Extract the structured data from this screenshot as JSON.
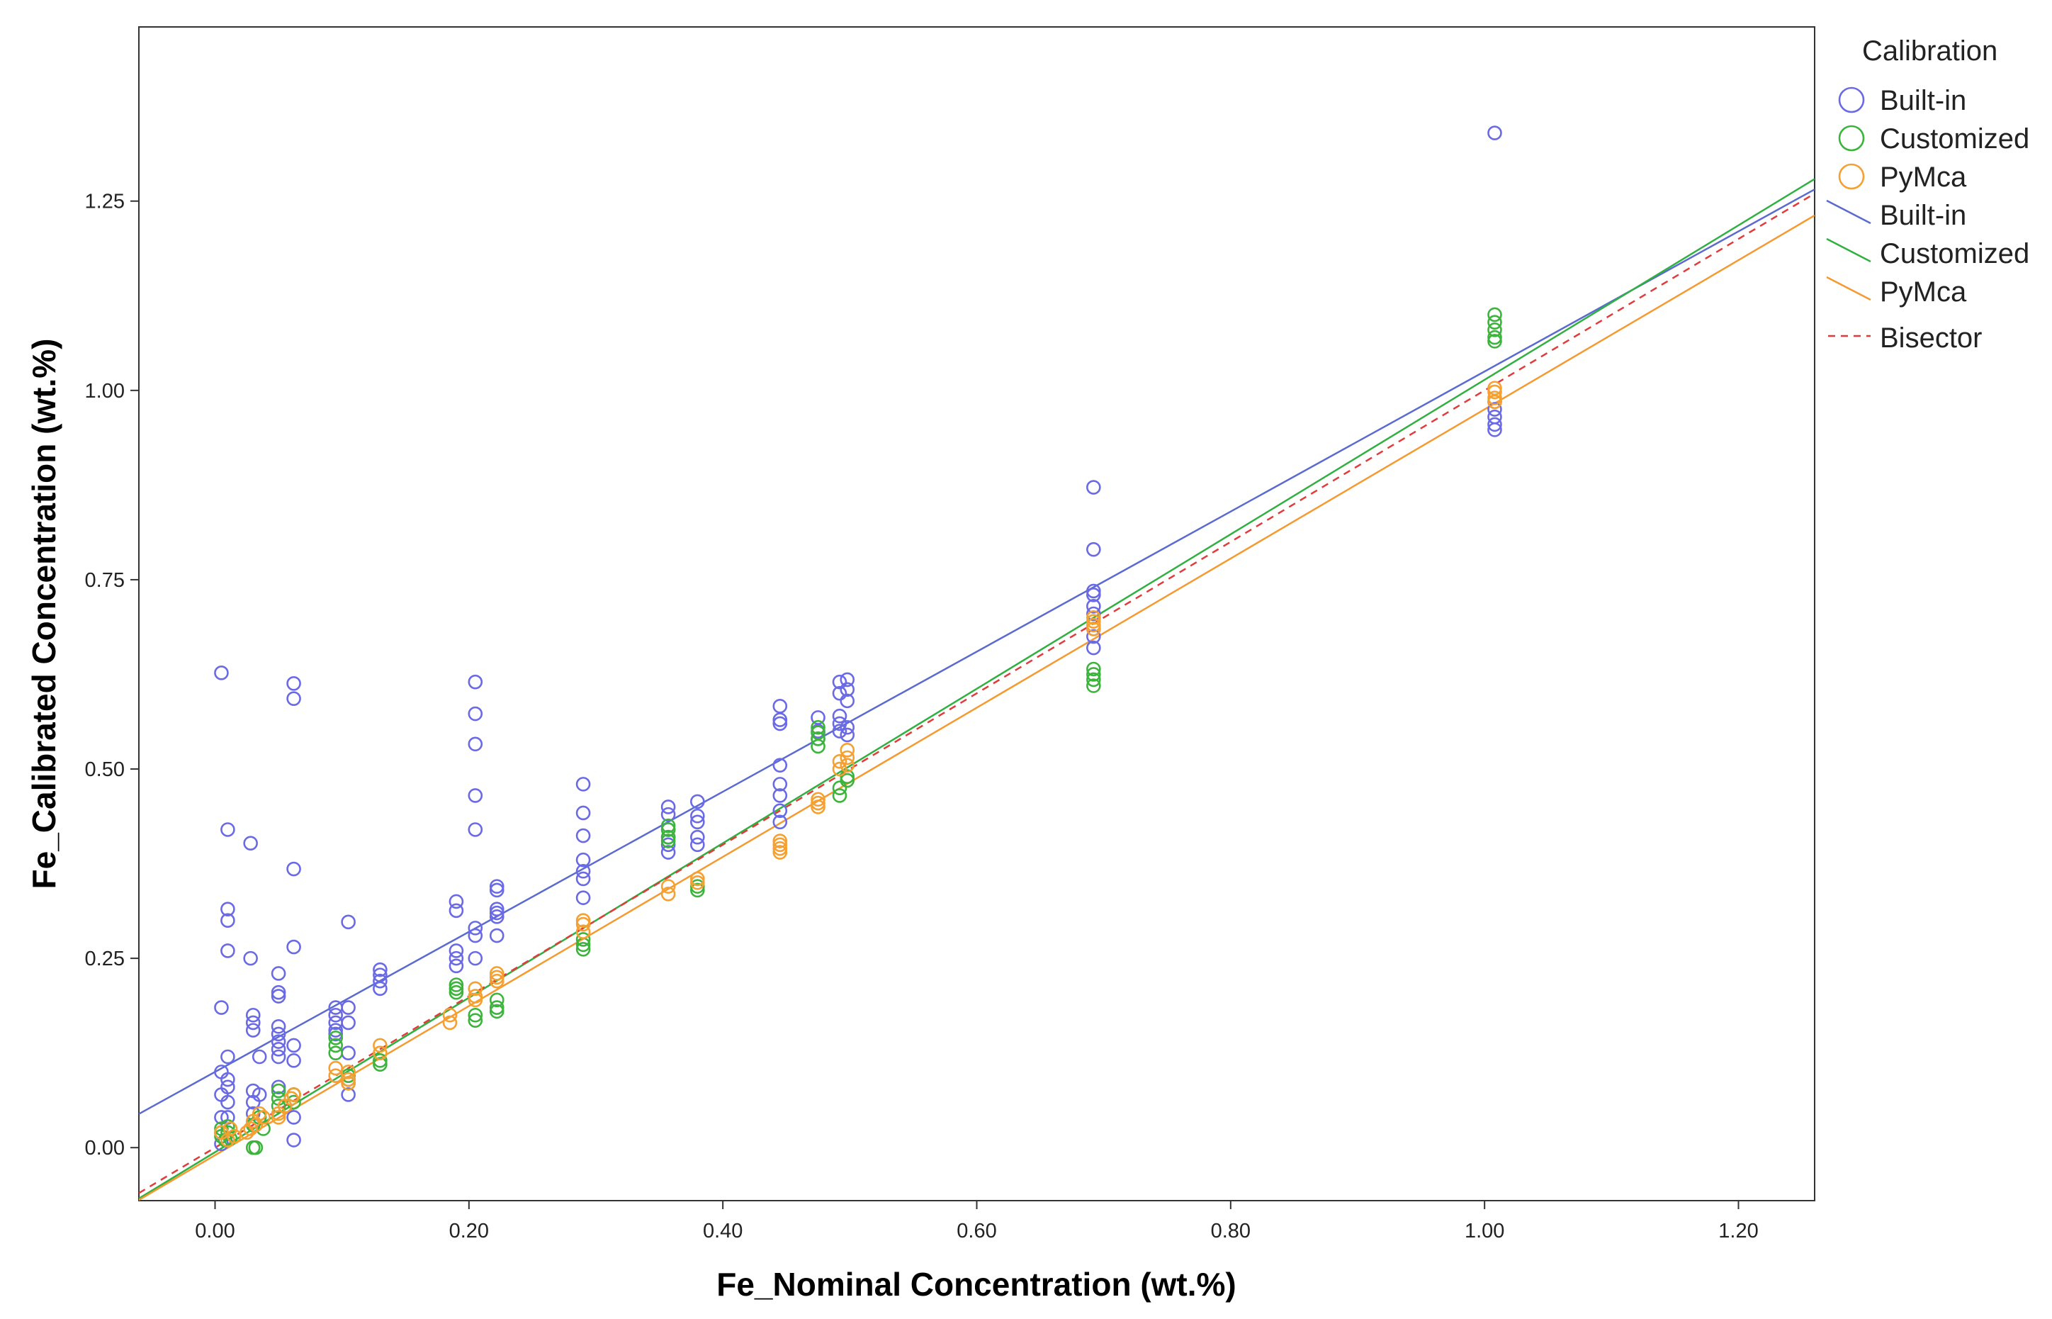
{
  "chart_data": {
    "type": "scatter",
    "xlabel": "Fe_Nominal Concentration (wt.%)",
    "ylabel": "Fe_Calibrated Concentration (wt.%)",
    "xlim": [
      -0.06,
      1.26
    ],
    "ylim": [
      -0.07,
      1.48
    ],
    "x_ticks": [
      "0.00",
      "0.20",
      "0.40",
      "0.60",
      "0.80",
      "1.00",
      "1.20"
    ],
    "x_tick_values": [
      0,
      0.2,
      0.4,
      0.6,
      0.8,
      1.0,
      1.2
    ],
    "y_ticks": [
      "0.00",
      "0.25",
      "0.50",
      "0.75",
      "1.00",
      "1.25"
    ],
    "y_tick_values": [
      0,
      0.25,
      0.5,
      0.75,
      1.0,
      1.25
    ],
    "grid": false,
    "legend": {
      "title": "Calibration",
      "placement": "right",
      "entries": [
        {
          "label": "Built-in",
          "kind": "marker",
          "color": "#6a6ae6"
        },
        {
          "label": "Customized",
          "kind": "marker",
          "color": "#3cb43c"
        },
        {
          "label": "PyMca",
          "kind": "marker",
          "color": "#f5a030"
        },
        {
          "label": "Built-in",
          "kind": "line",
          "color": "#5a6ad0"
        },
        {
          "label": "Customized",
          "kind": "line",
          "color": "#30b040"
        },
        {
          "label": "PyMca",
          "kind": "line",
          "color": "#f59a30"
        },
        {
          "label": "Bisector",
          "kind": "dashed",
          "color": "#e03c3c"
        }
      ]
    },
    "lines": [
      {
        "name": "Built-in",
        "color": "#5a6ad0",
        "style": "solid",
        "slope": 0.925,
        "intercept": 0.1
      },
      {
        "name": "Customized",
        "color": "#30b040",
        "style": "solid",
        "slope": 1.02,
        "intercept": -0.006
      },
      {
        "name": "PyMca",
        "color": "#f59a30",
        "style": "solid",
        "slope": 0.985,
        "intercept": -0.01
      },
      {
        "name": "Bisector",
        "color": "#e03c3c",
        "style": "dashed",
        "slope": 1.0,
        "intercept": 0.0
      }
    ],
    "series": [
      {
        "name": "Built-in",
        "color": "#6a6ae6",
        "points": [
          [
            0.005,
            0.627
          ],
          [
            0.005,
            0.185
          ],
          [
            0.005,
            0.1
          ],
          [
            0.005,
            0.07
          ],
          [
            0.005,
            0.04
          ],
          [
            0.005,
            0.02
          ],
          [
            0.005,
            0.005
          ],
          [
            0.01,
            0.42
          ],
          [
            0.01,
            0.315
          ],
          [
            0.01,
            0.3
          ],
          [
            0.01,
            0.26
          ],
          [
            0.01,
            0.12
          ],
          [
            0.01,
            0.09
          ],
          [
            0.01,
            0.08
          ],
          [
            0.01,
            0.06
          ],
          [
            0.01,
            0.04
          ],
          [
            0.028,
            0.402
          ],
          [
            0.028,
            0.25
          ],
          [
            0.03,
            0.175
          ],
          [
            0.03,
            0.165
          ],
          [
            0.03,
            0.155
          ],
          [
            0.03,
            0.075
          ],
          [
            0.03,
            0.06
          ],
          [
            0.03,
            0.045
          ],
          [
            0.03,
            0.03
          ],
          [
            0.035,
            0.12
          ],
          [
            0.035,
            0.07
          ],
          [
            0.05,
            0.23
          ],
          [
            0.05,
            0.205
          ],
          [
            0.05,
            0.2
          ],
          [
            0.05,
            0.16
          ],
          [
            0.05,
            0.15
          ],
          [
            0.05,
            0.14
          ],
          [
            0.05,
            0.13
          ],
          [
            0.05,
            0.12
          ],
          [
            0.05,
            0.08
          ],
          [
            0.062,
            0.613
          ],
          [
            0.062,
            0.593
          ],
          [
            0.062,
            0.368
          ],
          [
            0.062,
            0.265
          ],
          [
            0.062,
            0.135
          ],
          [
            0.062,
            0.115
          ],
          [
            0.062,
            0.07
          ],
          [
            0.062,
            0.04
          ],
          [
            0.062,
            0.01
          ],
          [
            0.095,
            0.185
          ],
          [
            0.095,
            0.175
          ],
          [
            0.095,
            0.165
          ],
          [
            0.095,
            0.155
          ],
          [
            0.095,
            0.15
          ],
          [
            0.105,
            0.298
          ],
          [
            0.105,
            0.185
          ],
          [
            0.105,
            0.165
          ],
          [
            0.105,
            0.125
          ],
          [
            0.105,
            0.09
          ],
          [
            0.105,
            0.07
          ],
          [
            0.13,
            0.235
          ],
          [
            0.13,
            0.228
          ],
          [
            0.13,
            0.22
          ],
          [
            0.13,
            0.21
          ],
          [
            0.19,
            0.325
          ],
          [
            0.19,
            0.313
          ],
          [
            0.19,
            0.26
          ],
          [
            0.19,
            0.25
          ],
          [
            0.19,
            0.24
          ],
          [
            0.205,
            0.615
          ],
          [
            0.205,
            0.573
          ],
          [
            0.205,
            0.533
          ],
          [
            0.205,
            0.465
          ],
          [
            0.205,
            0.42
          ],
          [
            0.205,
            0.29
          ],
          [
            0.205,
            0.28
          ],
          [
            0.205,
            0.25
          ],
          [
            0.222,
            0.345
          ],
          [
            0.222,
            0.34
          ],
          [
            0.222,
            0.315
          ],
          [
            0.222,
            0.31
          ],
          [
            0.222,
            0.305
          ],
          [
            0.222,
            0.28
          ],
          [
            0.29,
            0.48
          ],
          [
            0.29,
            0.442
          ],
          [
            0.29,
            0.412
          ],
          [
            0.29,
            0.38
          ],
          [
            0.29,
            0.365
          ],
          [
            0.29,
            0.355
          ],
          [
            0.29,
            0.33
          ],
          [
            0.357,
            0.45
          ],
          [
            0.357,
            0.44
          ],
          [
            0.357,
            0.42
          ],
          [
            0.357,
            0.41
          ],
          [
            0.357,
            0.4
          ],
          [
            0.357,
            0.39
          ],
          [
            0.38,
            0.457
          ],
          [
            0.38,
            0.438
          ],
          [
            0.38,
            0.43
          ],
          [
            0.38,
            0.41
          ],
          [
            0.38,
            0.4
          ],
          [
            0.445,
            0.583
          ],
          [
            0.445,
            0.565
          ],
          [
            0.445,
            0.56
          ],
          [
            0.445,
            0.505
          ],
          [
            0.445,
            0.48
          ],
          [
            0.445,
            0.465
          ],
          [
            0.445,
            0.445
          ],
          [
            0.445,
            0.43
          ],
          [
            0.475,
            0.568
          ],
          [
            0.475,
            0.55
          ],
          [
            0.475,
            0.54
          ],
          [
            0.492,
            0.615
          ],
          [
            0.492,
            0.6
          ],
          [
            0.492,
            0.57
          ],
          [
            0.492,
            0.56
          ],
          [
            0.492,
            0.55
          ],
          [
            0.498,
            0.618
          ],
          [
            0.498,
            0.605
          ],
          [
            0.498,
            0.59
          ],
          [
            0.498,
            0.555
          ],
          [
            0.498,
            0.545
          ],
          [
            0.692,
            0.872
          ],
          [
            0.692,
            0.79
          ],
          [
            0.692,
            0.735
          ],
          [
            0.692,
            0.73
          ],
          [
            0.692,
            0.715
          ],
          [
            0.692,
            0.705
          ],
          [
            0.692,
            0.685
          ],
          [
            0.692,
            0.675
          ],
          [
            0.692,
            0.66
          ],
          [
            1.008,
            1.34
          ],
          [
            1.008,
            0.985
          ],
          [
            1.008,
            0.975
          ],
          [
            1.008,
            0.965
          ],
          [
            1.008,
            0.955
          ],
          [
            1.008,
            0.948
          ]
        ]
      },
      {
        "name": "Customized",
        "color": "#3cb43c",
        "points": [
          [
            0.005,
            0.025
          ],
          [
            0.005,
            0.015
          ],
          [
            0.008,
            0.01
          ],
          [
            0.01,
            0.028
          ],
          [
            0.01,
            0.02
          ],
          [
            0.012,
            0.012
          ],
          [
            0.03,
            0.0
          ],
          [
            0.032,
            0.0
          ],
          [
            0.03,
            0.03
          ],
          [
            0.035,
            0.04
          ],
          [
            0.038,
            0.025
          ],
          [
            0.05,
            0.075
          ],
          [
            0.05,
            0.065
          ],
          [
            0.05,
            0.055
          ],
          [
            0.062,
            0.06
          ],
          [
            0.062,
            0.07
          ],
          [
            0.095,
            0.145
          ],
          [
            0.095,
            0.135
          ],
          [
            0.095,
            0.125
          ],
          [
            0.105,
            0.095
          ],
          [
            0.105,
            0.085
          ],
          [
            0.13,
            0.115
          ],
          [
            0.13,
            0.11
          ],
          [
            0.19,
            0.215
          ],
          [
            0.19,
            0.21
          ],
          [
            0.19,
            0.205
          ],
          [
            0.205,
            0.175
          ],
          [
            0.205,
            0.168
          ],
          [
            0.222,
            0.195
          ],
          [
            0.222,
            0.185
          ],
          [
            0.222,
            0.18
          ],
          [
            0.29,
            0.275
          ],
          [
            0.29,
            0.268
          ],
          [
            0.29,
            0.262
          ],
          [
            0.357,
            0.425
          ],
          [
            0.357,
            0.42
          ],
          [
            0.357,
            0.41
          ],
          [
            0.357,
            0.405
          ],
          [
            0.38,
            0.345
          ],
          [
            0.38,
            0.34
          ],
          [
            0.475,
            0.555
          ],
          [
            0.475,
            0.548
          ],
          [
            0.475,
            0.54
          ],
          [
            0.475,
            0.53
          ],
          [
            0.492,
            0.475
          ],
          [
            0.492,
            0.465
          ],
          [
            0.498,
            0.49
          ],
          [
            0.498,
            0.485
          ],
          [
            0.692,
            0.632
          ],
          [
            0.692,
            0.625
          ],
          [
            0.692,
            0.618
          ],
          [
            0.692,
            0.61
          ],
          [
            1.008,
            1.1
          ],
          [
            1.008,
            1.09
          ],
          [
            1.008,
            1.08
          ],
          [
            1.008,
            1.07
          ],
          [
            1.008,
            1.065
          ]
        ]
      },
      {
        "name": "PyMca",
        "color": "#f5a030",
        "points": [
          [
            0.005,
            0.02
          ],
          [
            0.01,
            0.01
          ],
          [
            0.012,
            0.025
          ],
          [
            0.015,
            0.015
          ],
          [
            0.025,
            0.02
          ],
          [
            0.028,
            0.025
          ],
          [
            0.03,
            0.035
          ],
          [
            0.032,
            0.03
          ],
          [
            0.038,
            0.04
          ],
          [
            0.035,
            0.045
          ],
          [
            0.05,
            0.04
          ],
          [
            0.05,
            0.045
          ],
          [
            0.055,
            0.055
          ],
          [
            0.06,
            0.065
          ],
          [
            0.062,
            0.07
          ],
          [
            0.095,
            0.105
          ],
          [
            0.095,
            0.095
          ],
          [
            0.105,
            0.1
          ],
          [
            0.105,
            0.09
          ],
          [
            0.105,
            0.085
          ],
          [
            0.13,
            0.135
          ],
          [
            0.13,
            0.125
          ],
          [
            0.185,
            0.175
          ],
          [
            0.185,
            0.165
          ],
          [
            0.205,
            0.21
          ],
          [
            0.205,
            0.2
          ],
          [
            0.205,
            0.195
          ],
          [
            0.222,
            0.23
          ],
          [
            0.222,
            0.225
          ],
          [
            0.222,
            0.22
          ],
          [
            0.29,
            0.3
          ],
          [
            0.29,
            0.295
          ],
          [
            0.29,
            0.285
          ],
          [
            0.357,
            0.345
          ],
          [
            0.357,
            0.335
          ],
          [
            0.38,
            0.355
          ],
          [
            0.38,
            0.35
          ],
          [
            0.445,
            0.405
          ],
          [
            0.445,
            0.4
          ],
          [
            0.445,
            0.395
          ],
          [
            0.445,
            0.39
          ],
          [
            0.475,
            0.46
          ],
          [
            0.475,
            0.455
          ],
          [
            0.475,
            0.45
          ],
          [
            0.492,
            0.51
          ],
          [
            0.492,
            0.5
          ],
          [
            0.498,
            0.525
          ],
          [
            0.498,
            0.515
          ],
          [
            0.498,
            0.505
          ],
          [
            0.692,
            0.7
          ],
          [
            0.692,
            0.695
          ],
          [
            0.692,
            0.69
          ],
          [
            0.692,
            0.685
          ],
          [
            1.008,
            1.003
          ],
          [
            1.008,
            0.998
          ],
          [
            1.008,
            0.99
          ],
          [
            1.008,
            0.985
          ]
        ]
      }
    ]
  }
}
